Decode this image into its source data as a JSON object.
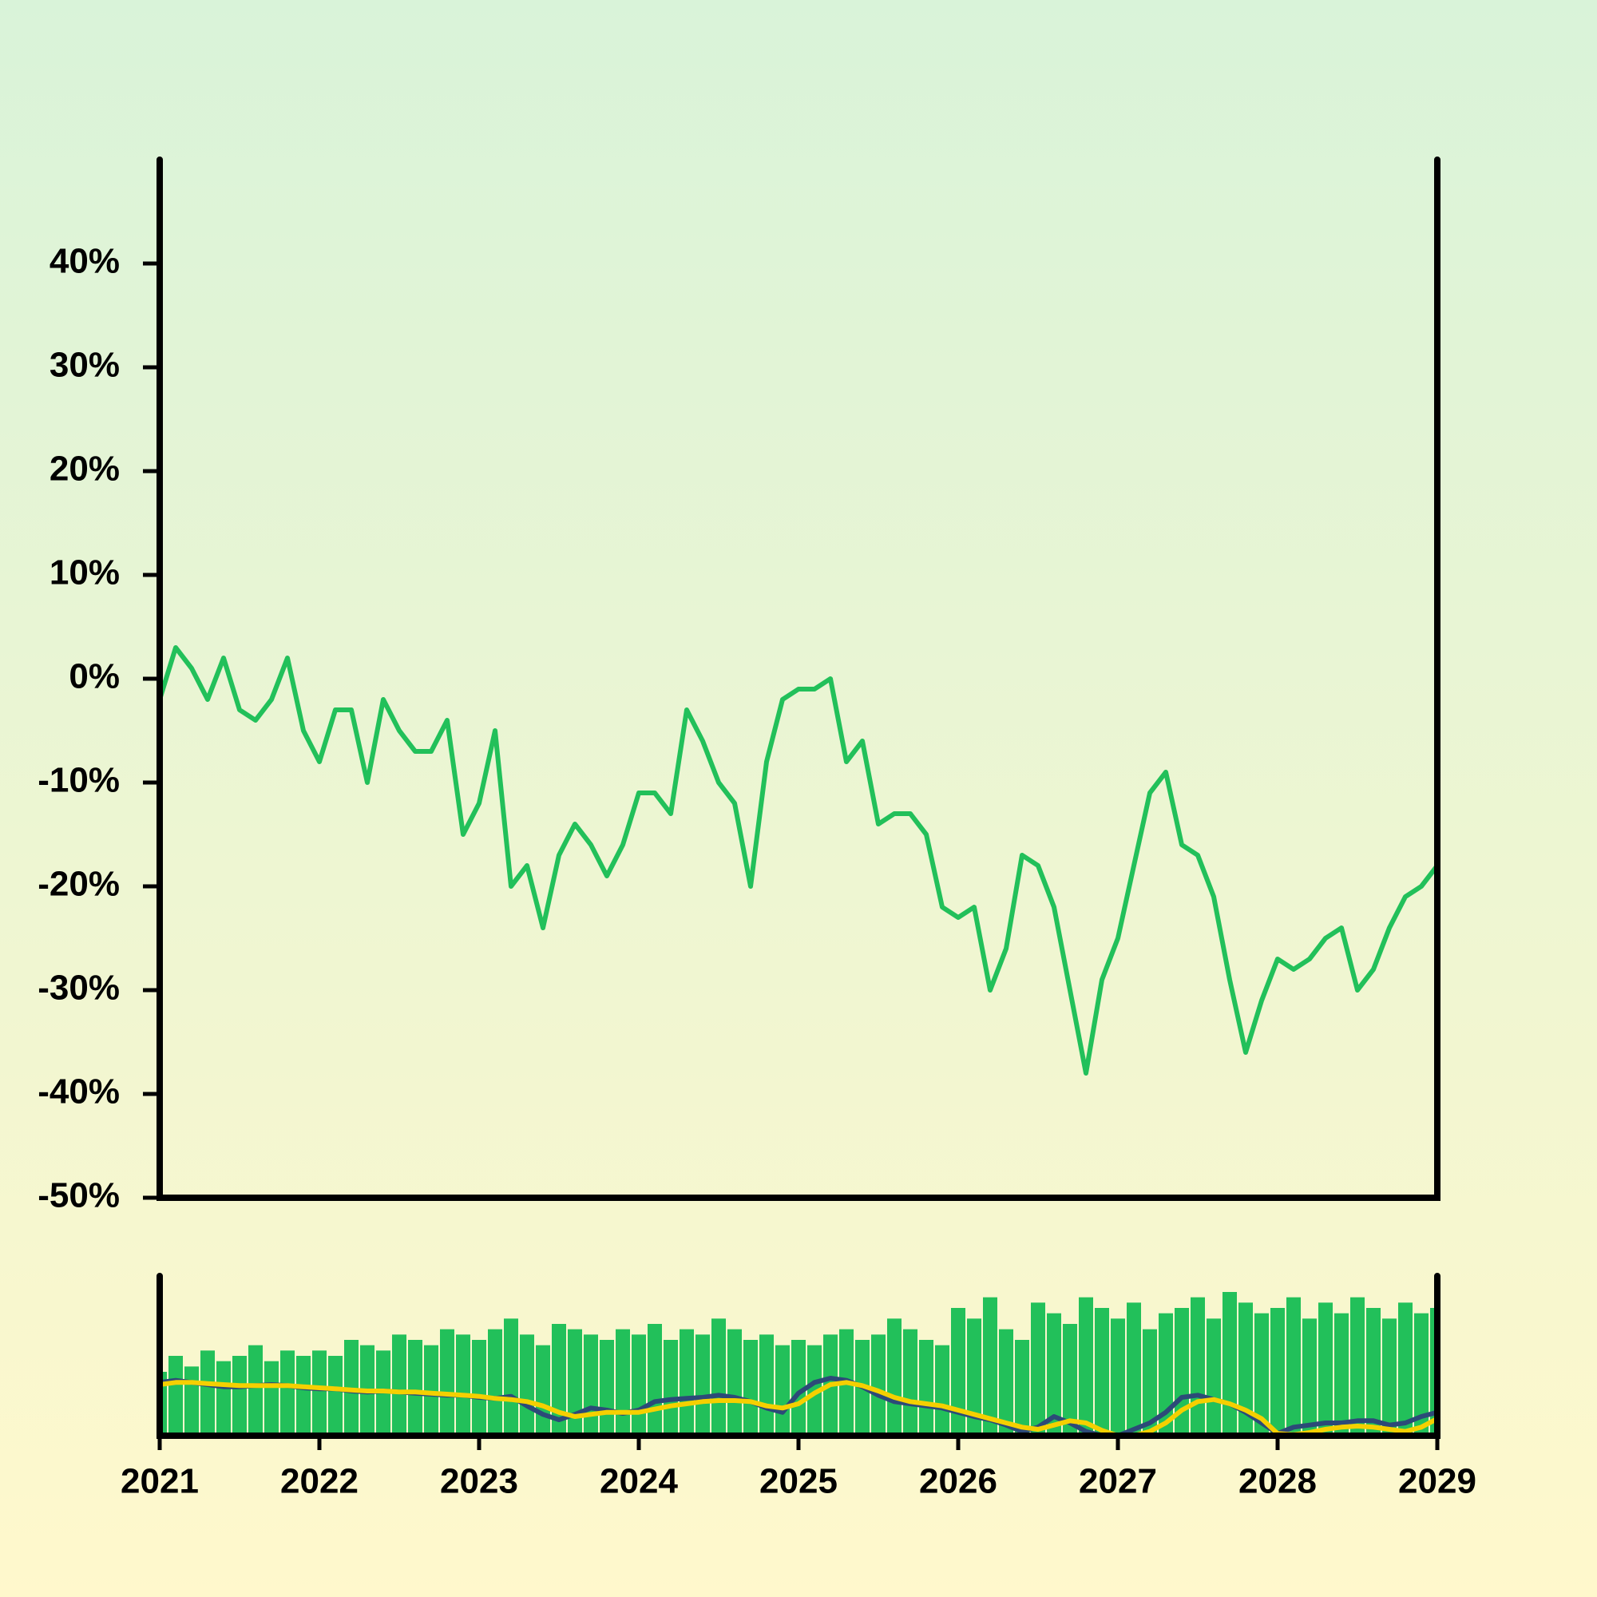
{
  "chart_data": [
    {
      "type": "line",
      "color": "#22c05a",
      "x": [
        2021.0,
        2021.1,
        2021.2,
        2021.3,
        2021.4,
        2021.5,
        2021.6,
        2021.7,
        2021.8,
        2021.9,
        2022.0,
        2022.1,
        2022.2,
        2022.3,
        2022.4,
        2022.5,
        2022.6,
        2022.7,
        2022.8,
        2022.9,
        2023.0,
        2023.1,
        2023.2,
        2023.3,
        2023.4,
        2023.5,
        2023.6,
        2023.7,
        2023.8,
        2023.9,
        2024.0,
        2024.1,
        2024.2,
        2024.3,
        2024.4,
        2024.5,
        2024.6,
        2024.7,
        2024.8,
        2024.9,
        2025.0,
        2025.1,
        2025.2,
        2025.3,
        2025.4,
        2025.5,
        2025.6,
        2025.7,
        2025.8,
        2025.9,
        2026.0,
        2026.1,
        2026.2,
        2026.3,
        2026.4,
        2026.5,
        2026.6,
        2026.7,
        2026.8,
        2026.9,
        2027.0,
        2027.1,
        2027.2,
        2027.3,
        2027.4,
        2027.5,
        2027.6,
        2027.7,
        2027.8,
        2027.9,
        2028.0,
        2028.1,
        2028.2,
        2028.3,
        2028.4,
        2028.5,
        2028.6,
        2028.7,
        2028.8,
        2028.9,
        2029.0
      ],
      "values": [
        -2,
        3,
        1,
        -2,
        2,
        -3,
        -4,
        -2,
        2,
        -5,
        -8,
        -3,
        -3,
        -10,
        -2,
        -5,
        -7,
        -7,
        -4,
        -15,
        -12,
        -5,
        -20,
        -18,
        -24,
        -17,
        -14,
        -16,
        -19,
        -16,
        -11,
        -11,
        -13,
        -3,
        -6,
        -10,
        -12,
        -20,
        -8,
        -2,
        -1,
        -1,
        0,
        -8,
        -6,
        -14,
        -13,
        -13,
        -15,
        -22,
        -23,
        -22,
        -30,
        -26,
        -17,
        -18,
        -22,
        -30,
        -38,
        -29,
        -25,
        -18,
        -11,
        -9,
        -16,
        -17,
        -21,
        -29,
        -36,
        -31,
        -27,
        -28,
        -27,
        -25,
        -24,
        -30,
        -28,
        -24,
        -21,
        -20,
        -18
      ],
      "xlim": [
        2021,
        2029
      ],
      "ylim": [
        -50,
        50
      ],
      "yticks": [
        {
          "value": 40,
          "label": "40%"
        },
        {
          "value": 30,
          "label": "30%"
        },
        {
          "value": 20,
          "label": "20%"
        },
        {
          "value": 10,
          "label": "10%"
        },
        {
          "value": 0,
          "label": "0%"
        },
        {
          "value": -10,
          "label": "-10%"
        },
        {
          "value": -20,
          "label": "-20%"
        },
        {
          "value": -30,
          "label": "-30%"
        },
        {
          "value": -40,
          "label": "-40%"
        },
        {
          "value": -50,
          "label": "-50%"
        }
      ]
    },
    {
      "type": "bar",
      "x": [
        2021.0,
        2021.1,
        2021.2,
        2021.3,
        2021.4,
        2021.5,
        2021.6,
        2021.7,
        2021.8,
        2021.9,
        2022.0,
        2022.1,
        2022.2,
        2022.3,
        2022.4,
        2022.5,
        2022.6,
        2022.7,
        2022.8,
        2022.9,
        2023.0,
        2023.1,
        2023.2,
        2023.3,
        2023.4,
        2023.5,
        2023.6,
        2023.7,
        2023.8,
        2023.9,
        2024.0,
        2024.1,
        2024.2,
        2024.3,
        2024.4,
        2024.5,
        2024.6,
        2024.7,
        2024.8,
        2024.9,
        2025.0,
        2025.1,
        2025.2,
        2025.3,
        2025.4,
        2025.5,
        2025.6,
        2025.7,
        2025.8,
        2025.9,
        2026.0,
        2026.1,
        2026.2,
        2026.3,
        2026.4,
        2026.5,
        2026.6,
        2026.7,
        2026.8,
        2026.9,
        2027.0,
        2027.1,
        2027.2,
        2027.3,
        2027.4,
        2027.5,
        2027.6,
        2027.7,
        2027.8,
        2027.9,
        2028.0,
        2028.1,
        2028.2,
        2028.3,
        2028.4,
        2028.5,
        2028.6,
        2028.7,
        2028.8,
        2028.9,
        2029.0
      ],
      "series": [
        {
          "type": "bar",
          "color": "#22c05a",
          "values": [
            60,
            75,
            65,
            80,
            70,
            75,
            85,
            70,
            80,
            75,
            80,
            75,
            90,
            85,
            80,
            95,
            90,
            85,
            100,
            95,
            90,
            100,
            110,
            95,
            85,
            105,
            100,
            95,
            90,
            100,
            95,
            105,
            90,
            100,
            95,
            110,
            100,
            90,
            95,
            85,
            90,
            85,
            95,
            100,
            90,
            95,
            110,
            100,
            90,
            85,
            120,
            110,
            130,
            100,
            90,
            125,
            115,
            105,
            130,
            120,
            110,
            125,
            100,
            115,
            120,
            130,
            110,
            135,
            125,
            115,
            120,
            130,
            110,
            125,
            115,
            130,
            120,
            110,
            125,
            115,
            120
          ]
        },
        {
          "type": "line",
          "color": "#2c4a78",
          "values": [
            50,
            52,
            50,
            48,
            46,
            46,
            47,
            48,
            47,
            45,
            44,
            44,
            42,
            41,
            42,
            41,
            40,
            39,
            38,
            38,
            36,
            35,
            37,
            28,
            20,
            15,
            20,
            26,
            24,
            21,
            24,
            32,
            34,
            35,
            36,
            38,
            36,
            32,
            26,
            22,
            40,
            50,
            54,
            52,
            46,
            38,
            32,
            30,
            28,
            26,
            22,
            18,
            15,
            10,
            4,
            8,
            18,
            12,
            4,
            0,
            0,
            6,
            12,
            22,
            36,
            38,
            34,
            30,
            22,
            12,
            2,
            8,
            10,
            12,
            12,
            14,
            14,
            10,
            12,
            18,
            22
          ]
        },
        {
          "type": "line",
          "color": "#f5d000",
          "values": [
            48,
            50,
            50,
            49,
            48,
            47,
            47,
            47,
            47,
            46,
            45,
            44,
            43,
            42,
            42,
            41,
            41,
            40,
            39,
            38,
            37,
            35,
            34,
            32,
            28,
            22,
            18,
            20,
            22,
            22,
            22,
            25,
            28,
            30,
            32,
            33,
            33,
            32,
            28,
            26,
            30,
            40,
            48,
            50,
            47,
            42,
            36,
            32,
            30,
            28,
            24,
            20,
            16,
            12,
            8,
            6,
            10,
            14,
            12,
            5,
            0,
            0,
            4,
            12,
            24,
            32,
            34,
            30,
            24,
            16,
            2,
            1,
            3,
            6,
            8,
            9,
            8,
            6,
            4,
            8,
            16
          ]
        }
      ],
      "xlim": [
        2021,
        2029
      ],
      "ylim": [
        0,
        150
      ],
      "xticks": [
        2021,
        2022,
        2023,
        2024,
        2025,
        2026,
        2027,
        2028,
        2029
      ]
    }
  ]
}
